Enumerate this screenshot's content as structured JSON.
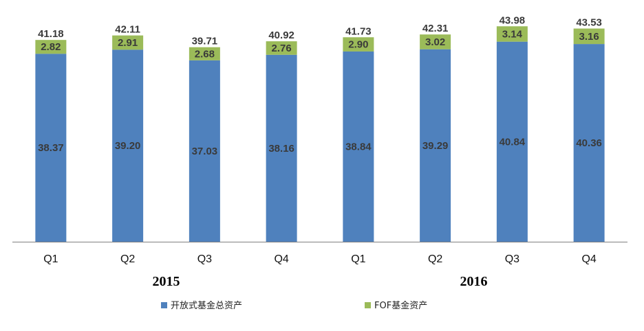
{
  "chart_data": {
    "type": "bar",
    "stacked": true,
    "categories": [
      "Q1",
      "Q2",
      "Q3",
      "Q4",
      "Q1",
      "Q2",
      "Q3",
      "Q4"
    ],
    "groups": [
      {
        "label": "2015",
        "categories": [
          0,
          1,
          2,
          3
        ]
      },
      {
        "label": "2016",
        "categories": [
          4,
          5,
          6,
          7
        ]
      }
    ],
    "series": [
      {
        "name": "开放式基金总资产",
        "color": "#4F81BD",
        "values": [
          38.37,
          39.2,
          37.03,
          38.16,
          38.84,
          39.29,
          40.84,
          40.36
        ],
        "labels": [
          "38.37",
          "39.20",
          "37.03",
          "38.16",
          "38.84",
          "39.29",
          "40.84",
          "40.36"
        ]
      },
      {
        "name": "FOF基金资产",
        "color": "#9BBB59",
        "values": [
          2.82,
          2.91,
          2.68,
          2.76,
          2.9,
          3.02,
          3.14,
          3.16
        ],
        "labels": [
          "2.82",
          "2.91",
          "2.68",
          "2.76",
          "2.90",
          "3.02",
          "3.14",
          "3.16"
        ]
      }
    ],
    "totals": [
      "41.18",
      "42.11",
      "39.71",
      "40.92",
      "41.73",
      "42.31",
      "43.98",
      "43.53"
    ],
    "ylim": [
      0,
      45
    ],
    "title": "",
    "xlabel": "",
    "ylabel": "",
    "grid": false,
    "legend_position": "bottom"
  }
}
